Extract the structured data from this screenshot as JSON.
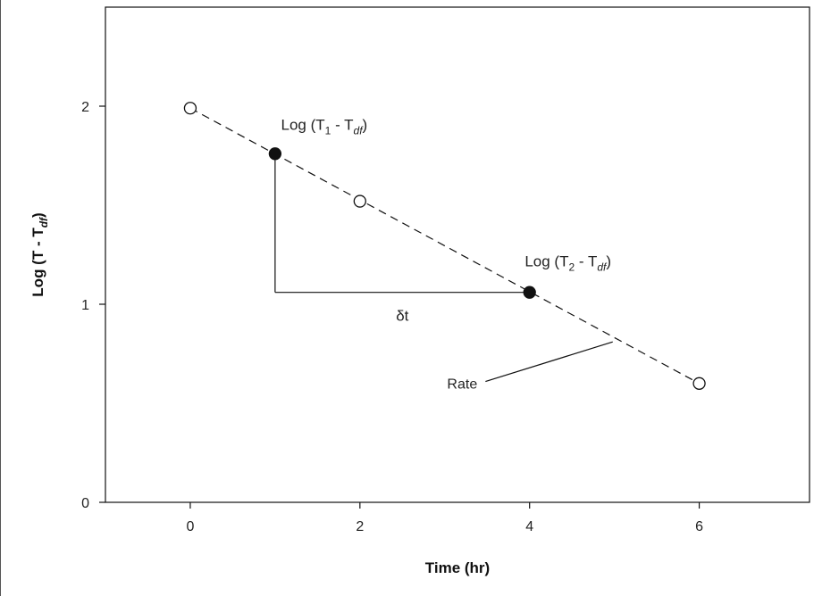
{
  "chart_data": {
    "type": "scatter",
    "title": "",
    "xlabel": "Time (hr)",
    "ylabel": {
      "main": "Log (T - T",
      "sub": "df",
      "close": ")"
    },
    "xlim": [
      -1,
      7.3
    ],
    "ylim": [
      0,
      2.5
    ],
    "x_ticks": [
      0,
      2,
      4,
      6
    ],
    "y_ticks": [
      0,
      1,
      2
    ],
    "grid": false,
    "fit_line": {
      "style": "dashed",
      "x": [
        0,
        6
      ],
      "y": [
        1.99,
        0.6
      ]
    },
    "series": [
      {
        "marker": "open-circle",
        "points": [
          {
            "x": 0,
            "y": 1.99
          },
          {
            "x": 2,
            "y": 1.52
          },
          {
            "x": 6,
            "y": 0.6
          }
        ]
      },
      {
        "marker": "filled-circle",
        "points": [
          {
            "x": 1,
            "y": 1.76
          },
          {
            "x": 4,
            "y": 1.06
          }
        ]
      }
    ],
    "annotations": {
      "point1": {
        "pre": "Log (T",
        "sub1": "1",
        "mid": " - T",
        "sub2": "df",
        "post": ")"
      },
      "point2": {
        "pre": "Log (T",
        "sub1": "2",
        "mid": " - T",
        "sub2": "df",
        "post": ")"
      },
      "delta": "δt",
      "rate": "Rate"
    },
    "triangle": {
      "x": [
        1,
        4
      ],
      "y": [
        1.76,
        1.06
      ]
    },
    "rate_pointer": {
      "from": {
        "x": 3.48,
        "y": 0.61
      },
      "to": {
        "x": 4.98,
        "y": 0.81
      }
    }
  }
}
